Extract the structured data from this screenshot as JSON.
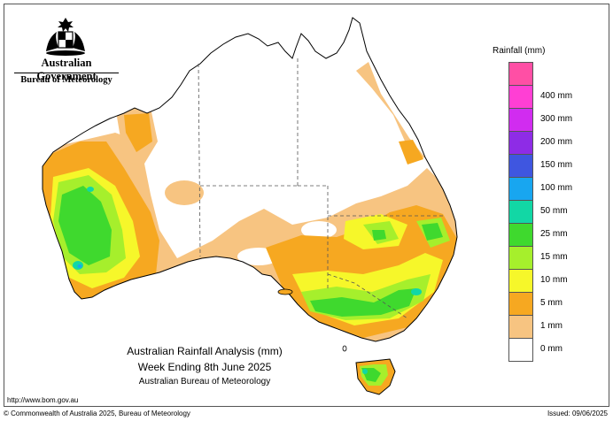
{
  "header": {
    "government": "Australian Government",
    "agency": "Bureau of Meteorology"
  },
  "legend": {
    "title": "Rainfall (mm)",
    "items": [
      {
        "label": "",
        "color": "#ff4fa5"
      },
      {
        "label": "400 mm",
        "color": "#ff3fd4"
      },
      {
        "label": "300 mm",
        "color": "#d12cf0"
      },
      {
        "label": "200 mm",
        "color": "#8e2ce6"
      },
      {
        "label": "150 mm",
        "color": "#3f56e0"
      },
      {
        "label": "100 mm",
        "color": "#18a6f0"
      },
      {
        "label": "50 mm",
        "color": "#12d7a5"
      },
      {
        "label": "25 mm",
        "color": "#3fd92e"
      },
      {
        "label": "15 mm",
        "color": "#a6ef2c"
      },
      {
        "label": "10 mm",
        "color": "#f6f72a"
      },
      {
        "label": "5 mm",
        "color": "#f6a821"
      },
      {
        "label": "1 mm",
        "color": "#f7c481"
      },
      {
        "label": "0 mm",
        "color": "#ffffff"
      }
    ]
  },
  "titles": {
    "line1": "Australian Rainfall Analysis (mm)",
    "line2": "Week Ending 8th June 2025",
    "line3": "Australian Bureau of Meteorology"
  },
  "footer": {
    "url": "http://www.bom.gov.au",
    "copyright": "© Commonwealth of Australia 2025, Bureau of Meteorology",
    "issued": "Issued: 09/06/2025"
  }
}
